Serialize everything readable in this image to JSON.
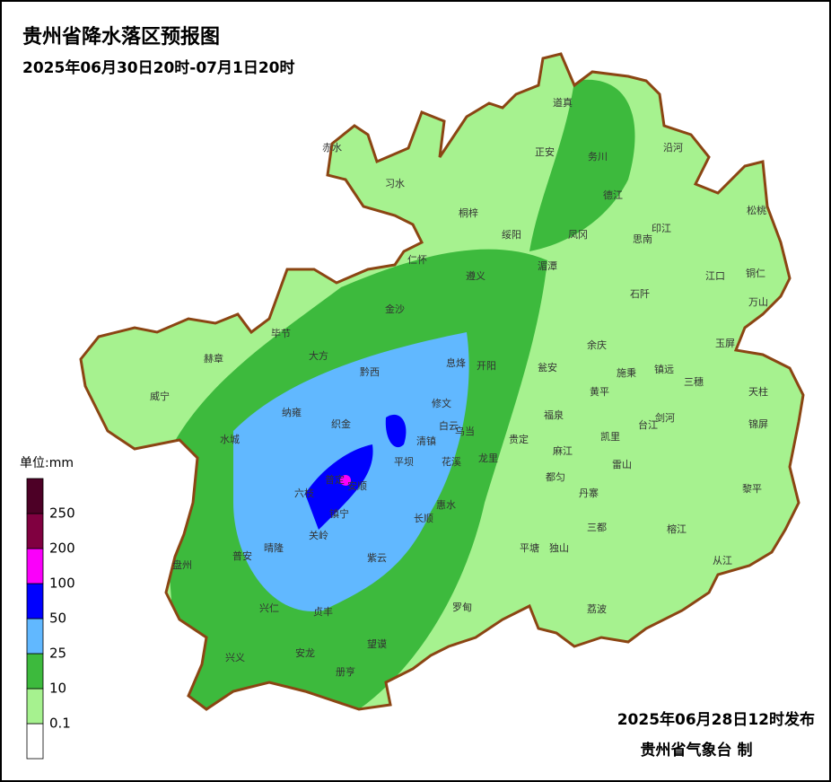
{
  "header": {
    "title": "贵州省降水落区预报图",
    "subtitle": "2025年06月30日20时-07月1日20时"
  },
  "legend": {
    "title": "单位:mm",
    "colors": [
      "#ffffff",
      "#a6f28f",
      "#3dba3d",
      "#61b8ff",
      "#0000fe",
      "#fa00fa",
      "#800040",
      "#4d0026"
    ],
    "labels": [
      0.1,
      10,
      25,
      50,
      100,
      200,
      250
    ]
  },
  "counties": [
    "赤水",
    "习水",
    "道真",
    "正安",
    "务川",
    "沿河",
    "桐梓",
    "绥阳",
    "凤冈",
    "德江",
    "印江",
    "思南",
    "松桃",
    "仁怀",
    "遵义",
    "湄潭",
    "石阡",
    "江口",
    "铜仁",
    "万山",
    "金沙",
    "毕节",
    "大方",
    "赫章",
    "黔西",
    "息烽",
    "开阳",
    "瓮安",
    "余庆",
    "施秉",
    "镇远",
    "三穗",
    "玉屏",
    "天柱",
    "威宁",
    "纳雍",
    "织金",
    "修文",
    "白云",
    "乌当",
    "清镇",
    "黄平",
    "福泉",
    "贵定",
    "凯里",
    "台江",
    "剑河",
    "锦屏",
    "水城",
    "平坝",
    "花溪",
    "龙里",
    "麻江",
    "雷山",
    "都匀",
    "黎平",
    "六枝",
    "普定",
    "安顺",
    "镇宁",
    "惠水",
    "长顺",
    "丹寨",
    "关岭",
    "三都",
    "榕江",
    "盘州",
    "普安",
    "晴隆",
    "紫云",
    "平塘",
    "独山",
    "从江",
    "兴仁",
    "贞丰",
    "罗甸",
    "荔波",
    "兴义",
    "安龙",
    "望谟",
    "册亨"
  ],
  "footer": {
    "issued": "2025年06月28日12时发布",
    "agency": "贵州省气象台 制"
  }
}
